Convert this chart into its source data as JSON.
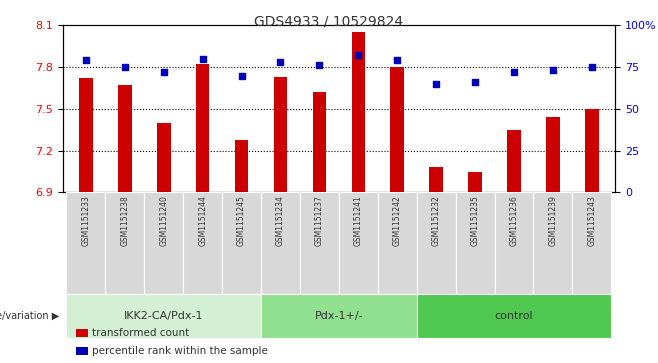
{
  "title": "GDS4933 / 10529824",
  "samples": [
    "GSM1151233",
    "GSM1151238",
    "GSM1151240",
    "GSM1151244",
    "GSM1151245",
    "GSM1151234",
    "GSM1151237",
    "GSM1151241",
    "GSM1151242",
    "GSM1151232",
    "GSM1151235",
    "GSM1151236",
    "GSM1151239",
    "GSM1151243"
  ],
  "bar_values": [
    7.72,
    7.67,
    7.4,
    7.82,
    7.28,
    7.73,
    7.62,
    8.05,
    7.8,
    7.08,
    7.05,
    7.35,
    7.44,
    7.5
  ],
  "percentile_values": [
    79,
    75,
    72,
    80,
    70,
    78,
    76,
    82,
    79,
    65,
    66,
    72,
    73,
    75
  ],
  "ylim_left": [
    6.9,
    8.1
  ],
  "ylim_right": [
    0,
    100
  ],
  "yticks_left": [
    6.9,
    7.2,
    7.5,
    7.8,
    8.1
  ],
  "ytick_labels_left": [
    "6.9",
    "7.2",
    "7.5",
    "7.8",
    "8.1"
  ],
  "yticks_right": [
    0,
    25,
    50,
    75,
    100
  ],
  "ytick_labels_right": [
    "0",
    "25",
    "50",
    "75",
    "100%"
  ],
  "hlines": [
    7.8,
    7.5,
    7.2
  ],
  "groups": [
    {
      "label": "IKK2-CA/Pdx-1",
      "start": 0,
      "end": 4,
      "color": "#d4f0d4"
    },
    {
      "label": "Pdx-1+/-",
      "start": 5,
      "end": 8,
      "color": "#90e090"
    },
    {
      "label": "control",
      "start": 9,
      "end": 13,
      "color": "#50c850"
    }
  ],
  "bar_color": "#cc0000",
  "percentile_color": "#0000bb",
  "bar_width": 0.35,
  "sample_bg_color": "#d8d8d8",
  "background_color": "#ffffff",
  "legend_items": [
    "transformed count",
    "percentile rank within the sample"
  ],
  "legend_colors": [
    "#cc0000",
    "#0000bb"
  ],
  "genotype_label": "genotype/variation"
}
